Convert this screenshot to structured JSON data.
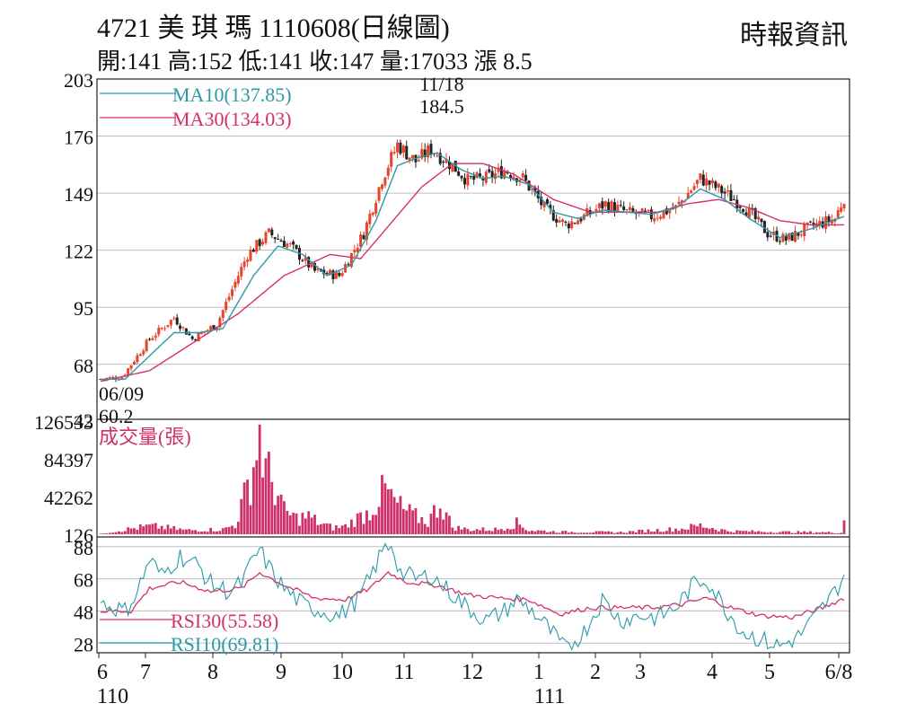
{
  "header": {
    "title": "4721 美 琪 瑪 1110608(日線圖)",
    "subtitle": "開:141 高:152 低:141 收:147 量:17033 漲 8.5",
    "source": "時報資訊"
  },
  "colors": {
    "up": "#e8442a",
    "down": "#222222",
    "ma10": "#2a9aaa",
    "ma30": "#d5306b",
    "volume": "#d0306a",
    "grid": "#bdbdbd"
  },
  "chart_data": [
    {
      "type": "candlestick",
      "ylim": [
        42,
        203
      ],
      "yticks": [
        42,
        68,
        95,
        122,
        149,
        176,
        203
      ],
      "grid": true,
      "legend": [
        {
          "key": "ma10",
          "label": "MA10(137.85)"
        },
        {
          "key": "ma30",
          "label": "MA30(134.03)"
        }
      ],
      "annotations": [
        {
          "id": "high",
          "date": "11/18",
          "value": "184.5"
        },
        {
          "id": "low",
          "date": "06/09",
          "value": "60.2"
        }
      ],
      "x_months": [
        "6",
        "7",
        "8",
        "9",
        "10",
        "11",
        "12",
        "1",
        "2",
        "3",
        "4",
        "5",
        "6/8"
      ],
      "x_years": [
        "110",
        "111"
      ],
      "price_anchors": [
        [
          0,
          61
        ],
        [
          7,
          62
        ],
        [
          16,
          80
        ],
        [
          24,
          90
        ],
        [
          30,
          80
        ],
        [
          38,
          87
        ],
        [
          48,
          120
        ],
        [
          55,
          130
        ],
        [
          62,
          124
        ],
        [
          70,
          112
        ],
        [
          78,
          110
        ],
        [
          86,
          130
        ],
        [
          92,
          156
        ],
        [
          97,
          172
        ],
        [
          103,
          164
        ],
        [
          108,
          170
        ],
        [
          115,
          162
        ],
        [
          120,
          155
        ],
        [
          126,
          156
        ],
        [
          132,
          160
        ],
        [
          138,
          156
        ],
        [
          145,
          142
        ],
        [
          152,
          134
        ],
        [
          158,
          138
        ],
        [
          165,
          144
        ],
        [
          172,
          140
        ],
        [
          180,
          138
        ],
        [
          188,
          142
        ],
        [
          196,
          156
        ],
        [
          203,
          150
        ],
        [
          210,
          143
        ],
        [
          218,
          130
        ],
        [
          224,
          127
        ],
        [
          232,
          133
        ],
        [
          240,
          137
        ],
        [
          243,
          147
        ]
      ],
      "ma10_anchors": [
        [
          0,
          61
        ],
        [
          8,
          61
        ],
        [
          16,
          72
        ],
        [
          24,
          83
        ],
        [
          32,
          83
        ],
        [
          40,
          85
        ],
        [
          50,
          110
        ],
        [
          58,
          124
        ],
        [
          66,
          120
        ],
        [
          74,
          110
        ],
        [
          82,
          115
        ],
        [
          90,
          136
        ],
        [
          97,
          162
        ],
        [
          104,
          166
        ],
        [
          110,
          168
        ],
        [
          118,
          160
        ],
        [
          125,
          156
        ],
        [
          132,
          157
        ],
        [
          140,
          153
        ],
        [
          148,
          140
        ],
        [
          156,
          137
        ],
        [
          164,
          141
        ],
        [
          172,
          140
        ],
        [
          180,
          139
        ],
        [
          188,
          142
        ],
        [
          196,
          151
        ],
        [
          204,
          146
        ],
        [
          212,
          137
        ],
        [
          222,
          128
        ],
        [
          232,
          132
        ],
        [
          243,
          138
        ]
      ],
      "ma30_anchors": [
        [
          0,
          60
        ],
        [
          16,
          65
        ],
        [
          30,
          78
        ],
        [
          45,
          92
        ],
        [
          60,
          110
        ],
        [
          75,
          120
        ],
        [
          85,
          118
        ],
        [
          95,
          135
        ],
        [
          105,
          152
        ],
        [
          115,
          163
        ],
        [
          125,
          163
        ],
        [
          135,
          158
        ],
        [
          148,
          146
        ],
        [
          160,
          140
        ],
        [
          172,
          140
        ],
        [
          182,
          140
        ],
        [
          192,
          144
        ],
        [
          202,
          146
        ],
        [
          212,
          142
        ],
        [
          222,
          136
        ],
        [
          232,
          134
        ],
        [
          243,
          134
        ]
      ]
    },
    {
      "type": "bar",
      "series_label": "成交量(張)",
      "ylim": [
        0,
        126533
      ],
      "yticks": [
        "126533",
        "84397",
        "42262",
        "126"
      ],
      "ytick_values": [
        126533,
        84397,
        42262,
        126
      ],
      "volume_anchors": [
        [
          0,
          500
        ],
        [
          10,
          7000
        ],
        [
          16,
          10000
        ],
        [
          20,
          9000
        ],
        [
          28,
          5000
        ],
        [
          40,
          6000
        ],
        [
          44,
          12000
        ],
        [
          47,
          45000
        ],
        [
          50,
          85000
        ],
        [
          52,
          126533
        ],
        [
          54,
          78000
        ],
        [
          57,
          60000
        ],
        [
          60,
          28000
        ],
        [
          64,
          20000
        ],
        [
          68,
          22000
        ],
        [
          72,
          13000
        ],
        [
          76,
          8000
        ],
        [
          80,
          10000
        ],
        [
          84,
          20000
        ],
        [
          88,
          28000
        ],
        [
          93,
          55000
        ],
        [
          96,
          40000
        ],
        [
          99,
          30000
        ],
        [
          103,
          22000
        ],
        [
          107,
          15000
        ],
        [
          111,
          40000
        ],
        [
          115,
          9000
        ],
        [
          120,
          6000
        ],
        [
          130,
          6000
        ],
        [
          136,
          14000
        ],
        [
          140,
          5000
        ],
        [
          150,
          3000
        ],
        [
          170,
          2500
        ],
        [
          190,
          7000
        ],
        [
          196,
          11000
        ],
        [
          205,
          4000
        ],
        [
          220,
          3000
        ],
        [
          235,
          2500
        ],
        [
          242,
          2000
        ],
        [
          243,
          17033
        ]
      ]
    },
    {
      "type": "line",
      "ylim": [
        22,
        94
      ],
      "yticks": [
        88,
        68,
        48,
        28
      ],
      "series": [
        {
          "key": "rsi30",
          "name": "RSI30(55.58)"
        },
        {
          "key": "rsi10",
          "name": "RSI10(69.81)"
        }
      ],
      "rsi10_anchors": [
        [
          0,
          53
        ],
        [
          8,
          48
        ],
        [
          12,
          60
        ],
        [
          16,
          80
        ],
        [
          20,
          70
        ],
        [
          26,
          82
        ],
        [
          32,
          76
        ],
        [
          36,
          65
        ],
        [
          42,
          60
        ],
        [
          46,
          65
        ],
        [
          50,
          80
        ],
        [
          52,
          86
        ],
        [
          55,
          75
        ],
        [
          60,
          62
        ],
        [
          66,
          52
        ],
        [
          72,
          48
        ],
        [
          78,
          45
        ],
        [
          84,
          55
        ],
        [
          88,
          68
        ],
        [
          92,
          85
        ],
        [
          95,
          90
        ],
        [
          98,
          72
        ],
        [
          103,
          68
        ],
        [
          108,
          70
        ],
        [
          114,
          60
        ],
        [
          120,
          50
        ],
        [
          126,
          42
        ],
        [
          132,
          48
        ],
        [
          136,
          55
        ],
        [
          140,
          50
        ],
        [
          146,
          38
        ],
        [
          152,
          24
        ],
        [
          158,
          35
        ],
        [
          164,
          55
        ],
        [
          170,
          42
        ],
        [
          176,
          45
        ],
        [
          182,
          44
        ],
        [
          188,
          50
        ],
        [
          194,
          65
        ],
        [
          198,
          68
        ],
        [
          204,
          50
        ],
        [
          210,
          35
        ],
        [
          216,
          30
        ],
        [
          222,
          26
        ],
        [
          228,
          32
        ],
        [
          234,
          45
        ],
        [
          240,
          60
        ],
        [
          243,
          70
        ]
      ],
      "rsi30_anchors": [
        [
          0,
          48
        ],
        [
          10,
          48
        ],
        [
          16,
          62
        ],
        [
          26,
          66
        ],
        [
          36,
          60
        ],
        [
          46,
          62
        ],
        [
          52,
          72
        ],
        [
          60,
          64
        ],
        [
          70,
          56
        ],
        [
          80,
          55
        ],
        [
          88,
          62
        ],
        [
          94,
          72
        ],
        [
          100,
          66
        ],
        [
          110,
          64
        ],
        [
          120,
          58
        ],
        [
          130,
          56
        ],
        [
          140,
          55
        ],
        [
          150,
          46
        ],
        [
          160,
          50
        ],
        [
          170,
          50
        ],
        [
          180,
          50
        ],
        [
          190,
          52
        ],
        [
          198,
          56
        ],
        [
          206,
          50
        ],
        [
          216,
          45
        ],
        [
          226,
          44
        ],
        [
          236,
          50
        ],
        [
          243,
          56
        ]
      ]
    }
  ]
}
